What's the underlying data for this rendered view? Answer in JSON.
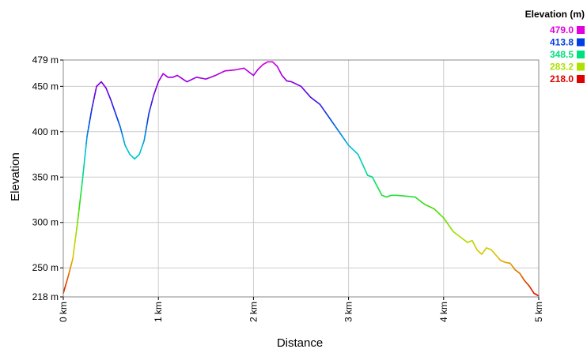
{
  "chart_data": {
    "type": "line",
    "title": "",
    "xlabel": "Distance",
    "ylabel": "Elevation",
    "xlim": [
      0,
      5
    ],
    "ylim": [
      218,
      479
    ],
    "x_ticks": [
      {
        "value": 0,
        "label": "0 km"
      },
      {
        "value": 1,
        "label": "1 km"
      },
      {
        "value": 2,
        "label": "2 km"
      },
      {
        "value": 3,
        "label": "3 km"
      },
      {
        "value": 4,
        "label": "4 km"
      },
      {
        "value": 5,
        "label": "5 km"
      }
    ],
    "y_ticks": [
      {
        "value": 218,
        "label": "218 m"
      },
      {
        "value": 250,
        "label": "250 m"
      },
      {
        "value": 300,
        "label": "300 m"
      },
      {
        "value": 350,
        "label": "350 m"
      },
      {
        "value": 400,
        "label": "400 m"
      },
      {
        "value": 450,
        "label": "450 m"
      },
      {
        "value": 479,
        "label": "479 m"
      }
    ],
    "grid": true,
    "legend": {
      "title": "Elevation (m)",
      "placement": "top-right",
      "entries": [
        {
          "label": "479.0",
          "value": 479.0,
          "color": "#e000e0"
        },
        {
          "label": "413.8",
          "value": 413.8,
          "color": "#0040e0"
        },
        {
          "label": "348.5",
          "value": 348.5,
          "color": "#00e080"
        },
        {
          "label": "283.2",
          "value": 283.2,
          "color": "#b0e000"
        },
        {
          "label": "218.0",
          "value": 218.0,
          "color": "#e00000"
        }
      ]
    },
    "series": [
      {
        "name": "Elevation",
        "x": [
          0,
          0.05,
          0.1,
          0.15,
          0.2,
          0.25,
          0.3,
          0.35,
          0.4,
          0.45,
          0.5,
          0.55,
          0.6,
          0.65,
          0.7,
          0.75,
          0.8,
          0.85,
          0.9,
          0.95,
          1.0,
          1.05,
          1.1,
          1.15,
          1.2,
          1.3,
          1.4,
          1.5,
          1.6,
          1.7,
          1.8,
          1.9,
          2.0,
          2.05,
          2.1,
          2.15,
          2.2,
          2.25,
          2.3,
          2.35,
          2.4,
          2.5,
          2.6,
          2.7,
          2.8,
          2.9,
          3.0,
          3.1,
          3.2,
          3.25,
          3.3,
          3.35,
          3.4,
          3.45,
          3.5,
          3.6,
          3.7,
          3.8,
          3.9,
          4.0,
          4.1,
          4.2,
          4.25,
          4.3,
          4.35,
          4.4,
          4.45,
          4.5,
          4.6,
          4.65,
          4.7,
          4.75,
          4.8,
          4.85,
          4.9,
          4.95,
          5.0
        ],
        "values": [
          222,
          240,
          260,
          300,
          345,
          395,
          425,
          450,
          455,
          448,
          435,
          420,
          405,
          385,
          375,
          370,
          375,
          390,
          420,
          440,
          455,
          464,
          460,
          460,
          462,
          455,
          460,
          458,
          462,
          467,
          468,
          470,
          462,
          469,
          474,
          477,
          477,
          472,
          462,
          456,
          455,
          450,
          438,
          430,
          415,
          400,
          385,
          375,
          352,
          350,
          340,
          330,
          328,
          330,
          330,
          329,
          328,
          320,
          315,
          305,
          290,
          282,
          278,
          280,
          270,
          265,
          272,
          270,
          258,
          256,
          255,
          248,
          244,
          236,
          230,
          222,
          219
        ]
      }
    ]
  }
}
